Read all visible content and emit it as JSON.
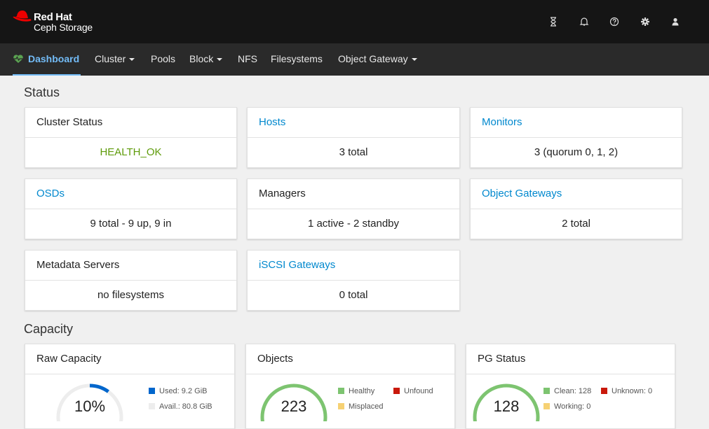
{
  "brand": {
    "line1": "Red Hat",
    "line2": "Ceph Storage"
  },
  "top_icons": [
    "hourglass-icon",
    "bell-icon",
    "help-icon",
    "gear-icon",
    "user-icon"
  ],
  "nav": {
    "dashboard": "Dashboard",
    "cluster": "Cluster",
    "pools": "Pools",
    "block": "Block",
    "nfs": "NFS",
    "filesystems": "Filesystems",
    "object_gateway": "Object Gateway"
  },
  "sections": {
    "status": "Status",
    "capacity": "Capacity"
  },
  "status_cards": {
    "cluster_status": {
      "title": "Cluster Status",
      "value": "HEALTH_OK"
    },
    "hosts": {
      "title": "Hosts",
      "value": "3 total"
    },
    "monitors": {
      "title": "Monitors",
      "value": "3 (quorum 0, 1, 2)"
    },
    "osds": {
      "title": "OSDs",
      "value": "9 total - 9 up, 9 in"
    },
    "managers": {
      "title": "Managers",
      "value": "1 active - 2 standby"
    },
    "object_gateways": {
      "title": "Object Gateways",
      "value": "2 total"
    },
    "metadata_servers": {
      "title": "Metadata Servers",
      "value": "no filesystems"
    },
    "iscsi_gateways": {
      "title": "iSCSI Gateways",
      "value": "0 total"
    }
  },
  "capacity": {
    "raw": {
      "title": "Raw Capacity",
      "value": "10%",
      "used_fraction": 0.1,
      "legend_used": "Used: 9.2 GiB",
      "legend_avail": "Avail.: 80.8 GiB"
    },
    "objects": {
      "title": "Objects",
      "value": "223",
      "legend_healthy": "Healthy",
      "legend_unfound": "Unfound",
      "legend_misplaced": "Misplaced"
    },
    "pg_status": {
      "title": "PG Status",
      "value": "128",
      "legend_clean": "Clean: 128",
      "legend_unknown": "Unknown: 0",
      "legend_working": "Working: 0"
    }
  },
  "colors": {
    "used": "#0066cc",
    "avail": "#ededed",
    "healthy": "#7dc470",
    "unfound": "#c9190b",
    "misplaced": "#f6d173",
    "link": "#0088ce",
    "ok": "#5e9b0a"
  }
}
